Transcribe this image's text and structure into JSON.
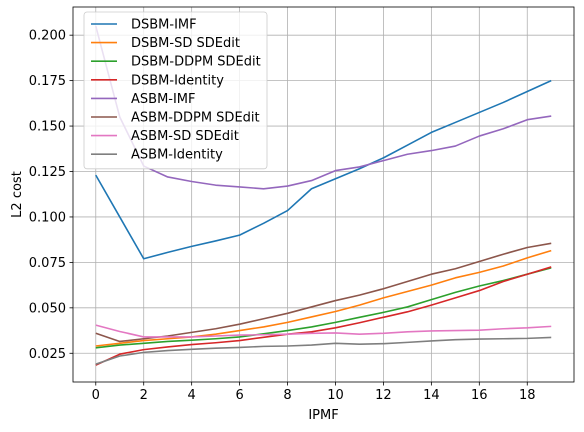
{
  "chart_data": {
    "type": "line",
    "title": "",
    "xlabel": "IPMF",
    "ylabel": "L2 cost",
    "xlim": [
      -0.95,
      19.95
    ],
    "ylim": [
      0.0092,
      0.2155
    ],
    "xticks": [
      0,
      2,
      4,
      6,
      8,
      10,
      12,
      14,
      16,
      18
    ],
    "xtick_labels": [
      "0",
      "2",
      "4",
      "6",
      "8",
      "10",
      "12",
      "14",
      "16",
      "18"
    ],
    "yticks": [
      0.025,
      0.05,
      0.075,
      0.1,
      0.125,
      0.15,
      0.175,
      0.2
    ],
    "ytick_labels": [
      "0.025",
      "0.050",
      "0.075",
      "0.100",
      "0.125",
      "0.150",
      "0.175",
      "0.200"
    ],
    "grid": true,
    "legend_position": "top-left",
    "x": [
      0,
      1,
      2,
      3,
      4,
      5,
      6,
      7,
      8,
      9,
      10,
      11,
      12,
      13,
      14,
      15,
      16,
      17,
      18,
      19
    ],
    "series": [
      {
        "name": "DSBM-IMF",
        "color": "#1f77b4",
        "values": [
          0.123,
          0.1,
          0.077,
          0.0805,
          0.0838,
          0.0868,
          0.09,
          0.0965,
          0.1035,
          0.1155,
          0.121,
          0.1265,
          0.1325,
          0.1395,
          0.1465,
          0.152,
          0.1575,
          0.163,
          0.169,
          0.175
        ]
      },
      {
        "name": "DSBM-SD SDEdit",
        "color": "#ff7f0e",
        "values": [
          0.029,
          0.0305,
          0.032,
          0.033,
          0.034,
          0.0355,
          0.0375,
          0.0395,
          0.042,
          0.045,
          0.048,
          0.0515,
          0.0555,
          0.059,
          0.0625,
          0.0665,
          0.0695,
          0.073,
          0.0775,
          0.0815
        ]
      },
      {
        "name": "DSBM-DDPM SDEdit",
        "color": "#2ca02c",
        "values": [
          0.028,
          0.0295,
          0.0305,
          0.0315,
          0.0322,
          0.033,
          0.034,
          0.0357,
          0.0375,
          0.0395,
          0.042,
          0.0448,
          0.0475,
          0.0505,
          0.0545,
          0.0585,
          0.062,
          0.065,
          0.0685,
          0.072
        ]
      },
      {
        "name": "DSBM-Identity",
        "color": "#d62728",
        "values": [
          0.0185,
          0.0245,
          0.027,
          0.0285,
          0.0298,
          0.0308,
          0.032,
          0.0338,
          0.0355,
          0.0368,
          0.039,
          0.0418,
          0.0448,
          0.0478,
          0.0515,
          0.0555,
          0.0595,
          0.0645,
          0.0685,
          0.0725
        ]
      },
      {
        "name": "ASBM-IMF",
        "color": "#9467bd",
        "values": [
          0.205,
          0.155,
          0.128,
          0.122,
          0.1195,
          0.1175,
          0.1165,
          0.1155,
          0.117,
          0.12,
          0.1255,
          0.1275,
          0.131,
          0.1345,
          0.1365,
          0.139,
          0.1445,
          0.1485,
          0.1535,
          0.1555
        ]
      },
      {
        "name": "ASBM-DDPM SDEdit",
        "color": "#8c564b",
        "values": [
          0.036,
          0.0315,
          0.033,
          0.0345,
          0.0365,
          0.0385,
          0.041,
          0.044,
          0.047,
          0.0505,
          0.054,
          0.057,
          0.0605,
          0.0645,
          0.0685,
          0.0715,
          0.0755,
          0.0795,
          0.0832,
          0.0855
        ]
      },
      {
        "name": "ASBM-SD SDEdit",
        "color": "#e377c2",
        "values": [
          0.0405,
          0.037,
          0.034,
          0.034,
          0.034,
          0.0345,
          0.035,
          0.0352,
          0.0355,
          0.036,
          0.0362,
          0.0355,
          0.036,
          0.0368,
          0.0373,
          0.0375,
          0.0377,
          0.0385,
          0.039,
          0.0398
        ]
      },
      {
        "name": "ASBM-Identity",
        "color": "#7f7f7f",
        "values": [
          0.019,
          0.0235,
          0.0255,
          0.0265,
          0.0272,
          0.0278,
          0.0282,
          0.0288,
          0.029,
          0.0295,
          0.0305,
          0.03,
          0.0303,
          0.031,
          0.0318,
          0.0325,
          0.0328,
          0.033,
          0.0332,
          0.0337
        ]
      }
    ]
  }
}
